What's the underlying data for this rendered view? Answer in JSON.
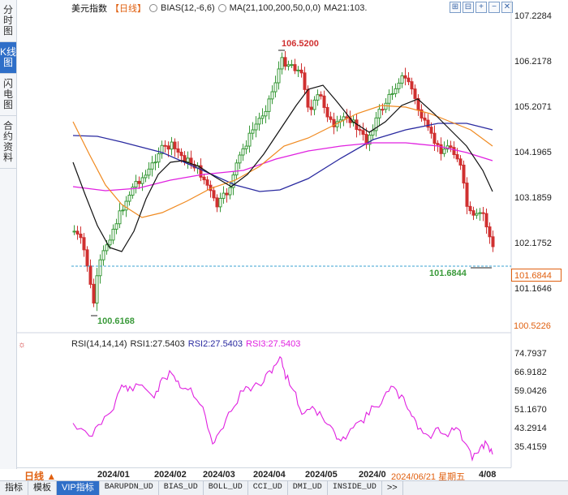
{
  "side_tabs": [
    {
      "label": "分时图",
      "active": false
    },
    {
      "label": "K线图",
      "active": true
    },
    {
      "label": "闪电图",
      "active": false
    },
    {
      "label": "合约资料",
      "active": false
    }
  ],
  "header": {
    "title": "美元指数",
    "period": "【日线】",
    "bias": "BIAS(12,-6,6)",
    "ma": "MA(21,100,200,50,0,0)",
    "ma21": "MA21:103."
  },
  "tool_buttons": [
    "⊞",
    "⊟",
    "+",
    "−",
    "✕"
  ],
  "price_axis": [
    "107.2284",
    "106.2178",
    "105.2071",
    "104.1965",
    "103.1859",
    "102.1752",
    "101.1646"
  ],
  "current_price": "101.6844",
  "low_price_tag": "100.5226",
  "high_label": "106.5200",
  "low_label": "100.6168",
  "last_label": "101.6844",
  "rsi": {
    "name": "RSI(14,14,14)",
    "rsi1": "RSI1:27.5403",
    "rsi2": "RSI2:27.5403",
    "rsi3": "RSI3:27.5403",
    "axis": [
      "74.7937",
      "66.9182",
      "59.0426",
      "51.1670",
      "43.2914",
      "35.4159"
    ]
  },
  "dates": [
    "2024/01",
    "2024/02",
    "2024/03",
    "2024/04",
    "2024/05",
    "2024/0",
    "2024/06/21 星期五",
    "4/08"
  ],
  "period_button": "日线 ▲",
  "bottom_tabs": [
    "指标",
    "模板",
    "VIP指标",
    "BARUPDN_UD",
    "BIAS_UD",
    "BOLL_UD",
    "CCI_UD",
    "DMI_UD",
    "INSIDE_UD",
    ">>"
  ],
  "colors": {
    "up": "#3a9a3a",
    "down": "#d03030",
    "ma_black": "#111111",
    "ma_orange": "#f08a20",
    "ma_blue": "#2a2aa0",
    "ma_magenta": "#e020e0",
    "rsi": "#e020e0",
    "accent": "#2f6fc8"
  }
}
